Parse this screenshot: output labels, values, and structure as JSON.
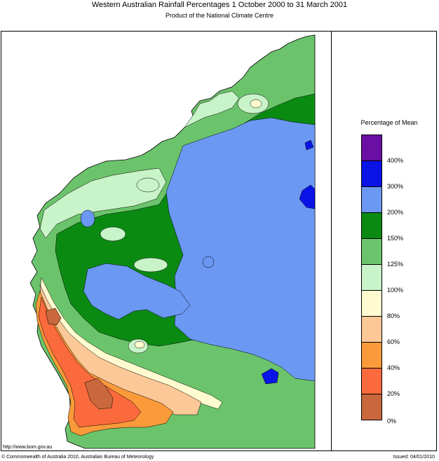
{
  "header": {
    "title": "Western Australian Rainfall Percentages 1 October 2000 to 31 March 2001",
    "subtitle": "Product of the National Climate Centre"
  },
  "legend": {
    "title": "Percentage of Mean",
    "bins": [
      {
        "label": "400%",
        "color": "#6a0fa4"
      },
      {
        "label": "300%",
        "color": "#0a14e6"
      },
      {
        "label": "200%",
        "color": "#6b98f2"
      },
      {
        "label": "150%",
        "color": "#0b8a12"
      },
      {
        "label": "125%",
        "color": "#6bc46b"
      },
      {
        "label": "100%",
        "color": "#c9f3c9"
      },
      {
        "label": "80%",
        "color": "#fffbd0"
      },
      {
        "label": "60%",
        "color": "#fcc898"
      },
      {
        "label": "40%",
        "color": "#fb9a3a"
      },
      {
        "label": "20%",
        "color": "#fb6a3c"
      },
      {
        "label": "0%",
        "color": "#c8683c"
      }
    ]
  },
  "footer": {
    "url": "http://www.bom.gov.au",
    "copyright": "© Commonwealth of Australia 2010, Australian Bureau of Meteorology",
    "issued": "Issued: 04/01/2010"
  }
}
